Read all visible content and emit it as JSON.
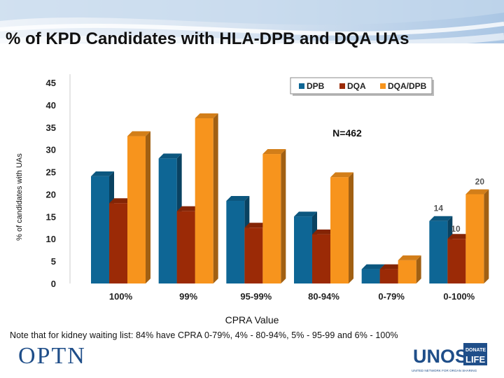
{
  "title": "% of KPD Candidates with HLA-DPB and DQA UAs",
  "note": "Note that for kidney waiting list: 84% have CPRA 0-79%, 4% - 80-94%, 5% - 95-99 and 6% - 100%",
  "logos": {
    "optn": "OPTN",
    "unos": "UNOS",
    "donate": "DONATE",
    "life": "LIFE",
    "unos_tagline": "UNITED NETWORK FOR ORGAN SHARING"
  },
  "colors": {
    "DPB": "#0e6695",
    "DQA": "#9b2a06",
    "DQA/DPB": "#f7941d"
  },
  "chart_data": {
    "type": "bar",
    "title": "% of KPD Candidates with HLA-DPB and DQA UAs",
    "xlabel": "CPRA Value",
    "ylabel": "% of candidates with UAs",
    "ylim": [
      0,
      45
    ],
    "yticks": [
      0,
      5,
      10,
      15,
      20,
      25,
      30,
      35,
      40,
      45
    ],
    "categories": [
      "100%",
      "99%",
      "95-99%",
      "80-94%",
      "0-79%",
      "0-100%"
    ],
    "series": [
      {
        "name": "DPB",
        "values": [
          24,
          28,
          18.5,
          15,
          3.2,
          14
        ]
      },
      {
        "name": "DQA",
        "values": [
          18,
          16.2,
          12.5,
          11,
          3.2,
          10
        ]
      },
      {
        "name": "DQA/DPB",
        "values": [
          33,
          37,
          29,
          23.8,
          5.2,
          20
        ]
      }
    ],
    "data_labels": [
      {
        "series": "DPB",
        "category": "0-100%",
        "text": "14"
      },
      {
        "series": "DQA",
        "category": "0-100%",
        "text": "10"
      },
      {
        "series": "DQA/DPB",
        "category": "0-100%",
        "text": "20"
      }
    ],
    "annotation": "N=462",
    "legend": {
      "position": "top-right",
      "entries": [
        "DPB",
        "DQA",
        "DQA/DPB"
      ]
    }
  }
}
